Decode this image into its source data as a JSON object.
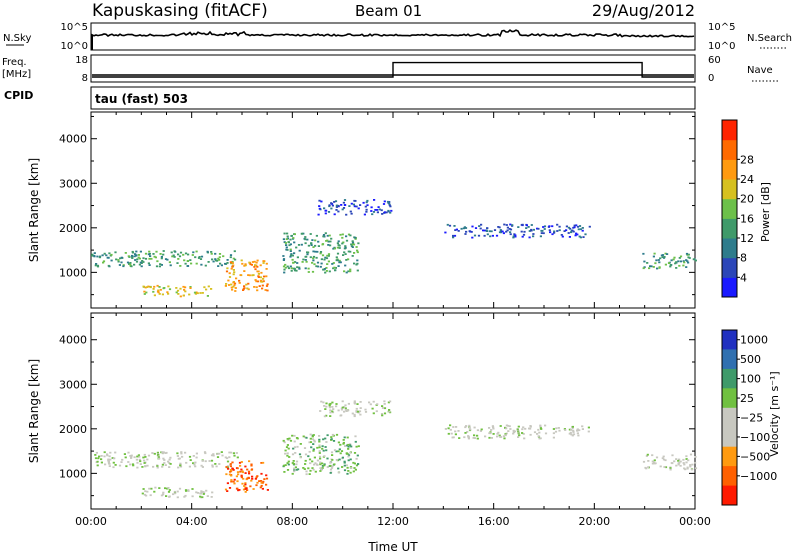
{
  "header": {
    "station": "Kapuskasing (fitACF)",
    "beam": "Beam 01",
    "date": "29/Aug/2012"
  },
  "panel_noise": {
    "left_label": "N.Sky",
    "right_label": "N.Search",
    "left_ticks": [
      "10^5",
      "10^0"
    ],
    "right_ticks": [
      "10^5",
      "10^0"
    ]
  },
  "panel_freq": {
    "left_label_1": "Freq.",
    "left_label_2": "[MHz]",
    "cpid_label": "CPID",
    "right_label": "Nave",
    "left_ticks": [
      "18",
      "8"
    ],
    "right_ticks": [
      "60",
      "0"
    ],
    "nave_step": {
      "start_hour": 12.0,
      "end_hour": 21.9,
      "level": 0.6
    }
  },
  "tau_label": "tau (fast) 503",
  "colors": {
    "power": [
      "#1a1aff",
      "#2b46b8",
      "#2e7c8c",
      "#3f9a6a",
      "#6cc04a",
      "#d6c020",
      "#ff9a10",
      "#ff6a00",
      "#ff2400"
    ],
    "velocity": [
      "#2030c0",
      "#3070b0",
      "#3f9a6a",
      "#70c040",
      "#c8c8c0",
      "#c8c8c0",
      "#ff9a10",
      "#ff6000",
      "#ff1a00"
    ]
  },
  "chart_data": [
    {
      "type": "heatmap",
      "title": "",
      "ylabel": "Slant Range [km]",
      "xlabel": "",
      "xlim": [
        0,
        24
      ],
      "ylim": [
        200,
        4600
      ],
      "yticks": [
        "1000",
        "2000",
        "3000",
        "4000"
      ],
      "colorbar": {
        "label": "Power [dB]",
        "ticks": [
          "4",
          "8",
          "12",
          "16",
          "20",
          "24",
          "28"
        ]
      },
      "regions": [
        {
          "t0": 0.0,
          "t1": 5.8,
          "r0": 1150,
          "r1": 1500,
          "level": 3
        },
        {
          "t0": 2.0,
          "t1": 4.8,
          "r0": 480,
          "r1": 720,
          "level": 5
        },
        {
          "t0": 5.3,
          "t1": 7.0,
          "r0": 600,
          "r1": 1300,
          "level": 6
        },
        {
          "t0": 7.6,
          "t1": 10.6,
          "r0": 1000,
          "r1": 1900,
          "level": 3
        },
        {
          "t0": 9.0,
          "t1": 11.9,
          "r0": 2300,
          "r1": 2650,
          "level": 1
        },
        {
          "t0": 14.0,
          "t1": 19.8,
          "r0": 1800,
          "r1": 2100,
          "level": 1
        },
        {
          "t0": 21.9,
          "t1": 24.0,
          "r0": 1100,
          "r1": 1450,
          "level": 3
        }
      ]
    },
    {
      "type": "heatmap",
      "title": "",
      "ylabel": "Slant Range [km]",
      "xlabel": "Time UT",
      "xlim": [
        0,
        24
      ],
      "ylim": [
        200,
        4600
      ],
      "xticks": [
        "00:00",
        "04:00",
        "08:00",
        "12:00",
        "16:00",
        "20:00",
        "00:00"
      ],
      "yticks": [
        "1000",
        "2000",
        "3000",
        "4000"
      ],
      "colorbar": {
        "label": "Velocity [m s⁻¹]",
        "ticks": [
          "1000",
          "500",
          "100",
          "25",
          "−25",
          "−100",
          "−500",
          "−1000"
        ]
      },
      "regions": [
        {
          "t0": 0.0,
          "t1": 5.8,
          "r0": 1150,
          "r1": 1500,
          "level": 4
        },
        {
          "t0": 2.0,
          "t1": 4.8,
          "r0": 480,
          "r1": 720,
          "level": 4
        },
        {
          "t0": 5.3,
          "t1": 7.0,
          "r0": 600,
          "r1": 1300,
          "level": 7
        },
        {
          "t0": 7.6,
          "t1": 10.6,
          "r0": 1000,
          "r1": 1900,
          "level": 3
        },
        {
          "t0": 9.0,
          "t1": 11.9,
          "r0": 2300,
          "r1": 2650,
          "level": 4
        },
        {
          "t0": 14.0,
          "t1": 19.8,
          "r0": 1800,
          "r1": 2100,
          "level": 4
        },
        {
          "t0": 21.9,
          "t1": 24.0,
          "r0": 1100,
          "r1": 1450,
          "level": 4
        }
      ]
    }
  ]
}
